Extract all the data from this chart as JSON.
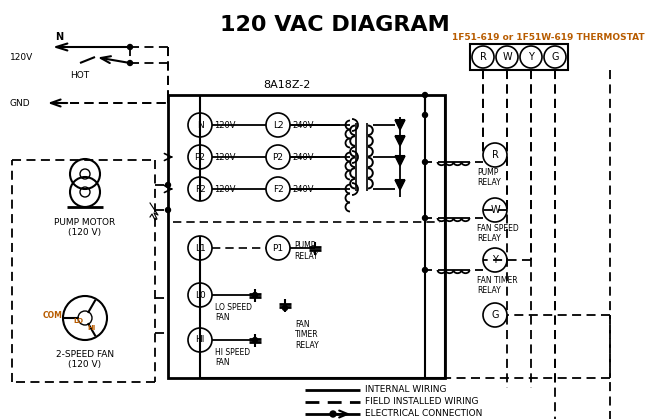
{
  "title": "120 VAC DIAGRAM",
  "title_fontsize": 16,
  "title_fontweight": "bold",
  "bg_color": "#ffffff",
  "line_color": "#000000",
  "orange_color": "#b85c00",
  "thermostat_label": "1F51-619 or 1F51W-619 THERMOSTAT",
  "control_box_label": "8A18Z-2",
  "thermostat_terminals": [
    "R",
    "W",
    "Y",
    "G"
  ],
  "left_terminals_circle": [
    "N",
    "P2",
    "F2"
  ],
  "left_terminals_labels": [
    "120V",
    "120V",
    "120V"
  ],
  "right_terminals_circle": [
    "L2",
    "P2",
    "F2"
  ],
  "right_terminals_labels": [
    "240V",
    "240V",
    "240V"
  ],
  "pump_motor_label": "PUMP MOTOR\n(120 V)",
  "fan_label": "2-SPEED FAN\n(120 V)",
  "legend_items": [
    "INTERNAL WIRING",
    "FIELD INSTALLED WIRING",
    "ELECTRICAL CONNECTION"
  ]
}
